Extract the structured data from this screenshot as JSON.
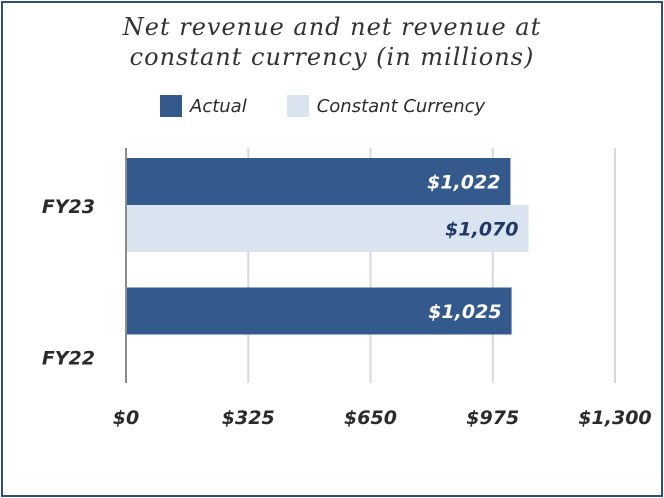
{
  "chart_data": {
    "type": "bar",
    "orientation": "horizontal",
    "title": [
      "Net revenue and net revenue at",
      "constant currency (in millions)"
    ],
    "categories": [
      "FY23",
      "FY22"
    ],
    "series": [
      {
        "name": "Actual",
        "color": "#34598C",
        "values": [
          1022,
          1025
        ],
        "labels": [
          "$1,022",
          "$1,025"
        ]
      },
      {
        "name": "Constant Currency",
        "color": "#DAE3F0",
        "values": [
          1070,
          null
        ],
        "labels": [
          "$1,070",
          ""
        ]
      }
    ],
    "x_ticks": [
      0,
      325,
      650,
      975,
      1300
    ],
    "x_tick_labels": [
      "$0",
      "$325",
      "$650",
      "$975",
      "$1,300"
    ],
    "xlim": [
      0,
      1300
    ],
    "grid": true,
    "legend_position": "top"
  },
  "colors": {
    "border": "#2E4F7E",
    "grid": "#D9D9D9",
    "axis": "#8C8C8C",
    "label_dark": "#1F3864",
    "label_light": "#ffffff",
    "tick_text": "#2b2b2b"
  }
}
